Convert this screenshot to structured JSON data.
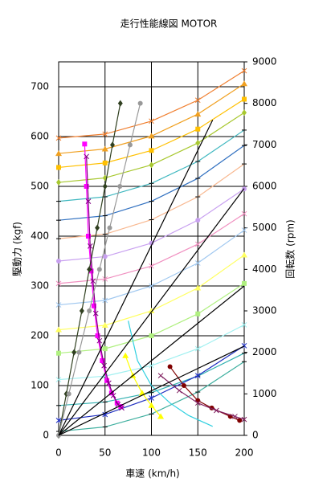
{
  "chart_data": {
    "type": "line",
    "title": "走行性能線図 MOTOR",
    "xlabel": "車速 (km/h)",
    "ylabel": "駆動力 (kgf)",
    "y2label": "回転数 (rpm)",
    "xlim": [
      0,
      200
    ],
    "xticks": [
      0,
      50,
      100,
      150,
      200
    ],
    "ylim": [
      0,
      750
    ],
    "yticks": [
      0,
      100,
      200,
      300,
      400,
      500,
      600,
      700
    ],
    "y2lim": [
      0,
      9000
    ],
    "y2ticks": [
      0,
      1000,
      2000,
      3000,
      4000,
      5000,
      6000,
      7000,
      8000,
      9000
    ],
    "grid": true,
    "series": [
      {
        "color": "#f07f30",
        "marker": "x",
        "x": [
          0,
          50,
          100,
          150,
          200
        ],
        "values": [
          597,
          605,
          631,
          673,
          732
        ]
      },
      {
        "color": "#f0a020",
        "marker": "triangle",
        "x": [
          0,
          50,
          100,
          150,
          200
        ],
        "values": [
          566,
          575,
          601,
          645,
          706
        ]
      },
      {
        "color": "#ffc000",
        "marker": "square",
        "x": [
          0,
          50,
          100,
          150,
          200
        ],
        "values": [
          538,
          547,
          572,
          615,
          675
        ]
      },
      {
        "color": "#a8c830",
        "marker": "diamond",
        "x": [
          0,
          50,
          100,
          150,
          200
        ],
        "values": [
          508,
          517,
          543,
          587,
          648
        ]
      },
      {
        "color": "#40b8c0",
        "marker": "dash",
        "x": [
          0,
          50,
          100,
          150,
          200
        ],
        "values": [
          470,
          479,
          506,
          550,
          613
        ]
      },
      {
        "color": "#3070c0",
        "marker": "dash",
        "x": [
          0,
          50,
          100,
          150,
          200
        ],
        "values": [
          432,
          441,
          470,
          516,
          582
        ]
      },
      {
        "color": "#f8b890",
        "marker": "dash",
        "x": [
          0,
          50,
          100,
          150,
          200
        ],
        "values": [
          395,
          404,
          433,
          479,
          545
        ]
      },
      {
        "color": "#c8a0f0",
        "marker": "circle",
        "x": [
          0,
          50,
          100,
          150,
          200
        ],
        "values": [
          350,
          359,
          386,
          432,
          495
        ]
      },
      {
        "color": "#f090c0",
        "marker": "x",
        "x": [
          0,
          50,
          100,
          150,
          200
        ],
        "values": [
          305,
          314,
          340,
          384,
          445
        ]
      },
      {
        "color": "#a0c8f0",
        "marker": "x",
        "x": [
          0,
          50,
          100,
          150,
          200
        ],
        "values": [
          262,
          271,
          300,
          346,
          412
        ]
      },
      {
        "color": "#ffff60",
        "marker": "triangle",
        "x": [
          0,
          50,
          100,
          150,
          200
        ],
        "values": [
          212,
          221,
          250,
          296,
          362
        ]
      },
      {
        "color": "#b0f080",
        "marker": "square",
        "x": [
          0,
          50,
          100,
          150,
          200
        ],
        "values": [
          165,
          174,
          200,
          244,
          305
        ]
      },
      {
        "color": "#a0f0f0",
        "marker": "x",
        "x": [
          0,
          50,
          100,
          150,
          200
        ],
        "values": [
          112,
          119,
          140,
          174,
          222
        ]
      },
      {
        "color": "#30b0b0",
        "marker": "dash",
        "x": [
          0,
          50,
          100,
          150,
          200
        ],
        "values": [
          60,
          67,
          86,
          119,
          165
        ]
      },
      {
        "color": "#2030c0",
        "marker": "star",
        "x": [
          0,
          50,
          100,
          150,
          200
        ],
        "values": [
          30,
          42,
          75,
          120,
          180
        ]
      },
      {
        "color": "#40b0a0",
        "marker": "dash",
        "x": [
          0,
          50,
          100,
          150,
          200
        ],
        "values": [
          8,
          17,
          43,
          87,
          148
        ]
      },
      {
        "color": "#ff00ff",
        "marker": "square",
        "x": [
          28,
          30,
          32,
          35,
          38,
          42,
          47,
          52,
          57,
          63,
          67
        ],
        "values": [
          585,
          500,
          400,
          330,
          260,
          200,
          150,
          110,
          85,
          65,
          58
        ]
      },
      {
        "color": "#800080",
        "marker": "x",
        "x": [
          30,
          32,
          34,
          37,
          40,
          44,
          49,
          54,
          59,
          64,
          68
        ],
        "values": [
          560,
          470,
          380,
          310,
          245,
          190,
          140,
          105,
          80,
          62,
          55
        ]
      },
      {
        "color": "#ffff00",
        "marker": "triangle",
        "x": [
          72,
          80,
          90,
          100,
          110
        ],
        "values": [
          160,
          120,
          85,
          60,
          38
        ]
      },
      {
        "color": "#30d0e0",
        "marker": "none",
        "x": [
          75,
          85,
          100,
          120,
          140,
          166
        ],
        "values": [
          230,
          150,
          100,
          65,
          40,
          18
        ]
      },
      {
        "color": "#800000",
        "marker": "circle",
        "x": [
          120,
          135,
          150,
          165,
          185,
          195
        ],
        "values": [
          138,
          100,
          70,
          55,
          38,
          30
        ]
      },
      {
        "color": "#802060",
        "marker": "x",
        "x": [
          110,
          130,
          150,
          170,
          190,
          200
        ],
        "values": [
          120,
          90,
          65,
          50,
          38,
          32
        ]
      },
      {
        "color": "#304020",
        "marker": "diamond",
        "axis": "y2",
        "x": [
          0,
          8.3,
          16.6,
          25,
          33,
          41.6,
          50,
          58,
          66.5
        ],
        "values": [
          0,
          1000,
          2000,
          3000,
          4000,
          5000,
          6000,
          7000,
          8000
        ]
      },
      {
        "color": "#999999",
        "marker": "circle",
        "axis": "y2",
        "x": [
          0,
          11,
          22,
          33,
          44,
          55,
          66,
          77,
          88
        ],
        "values": [
          0,
          1000,
          2000,
          3000,
          4000,
          5000,
          6000,
          7000,
          8000
        ]
      },
      {
        "color": "#000000",
        "marker": "none",
        "axis": "y2",
        "x": [
          0,
          166
        ],
        "values": [
          0,
          7600
        ]
      },
      {
        "color": "#000000",
        "marker": "none",
        "axis": "y2",
        "x": [
          0,
          200
        ],
        "values": [
          0,
          5950
        ]
      },
      {
        "color": "#000000",
        "marker": "none",
        "axis": "y2",
        "x": [
          0,
          200
        ],
        "values": [
          0,
          3600
        ]
      },
      {
        "color": "#000000",
        "marker": "none",
        "axis": "y2",
        "x": [
          0,
          200
        ],
        "values": [
          0,
          2150
        ]
      }
    ]
  }
}
